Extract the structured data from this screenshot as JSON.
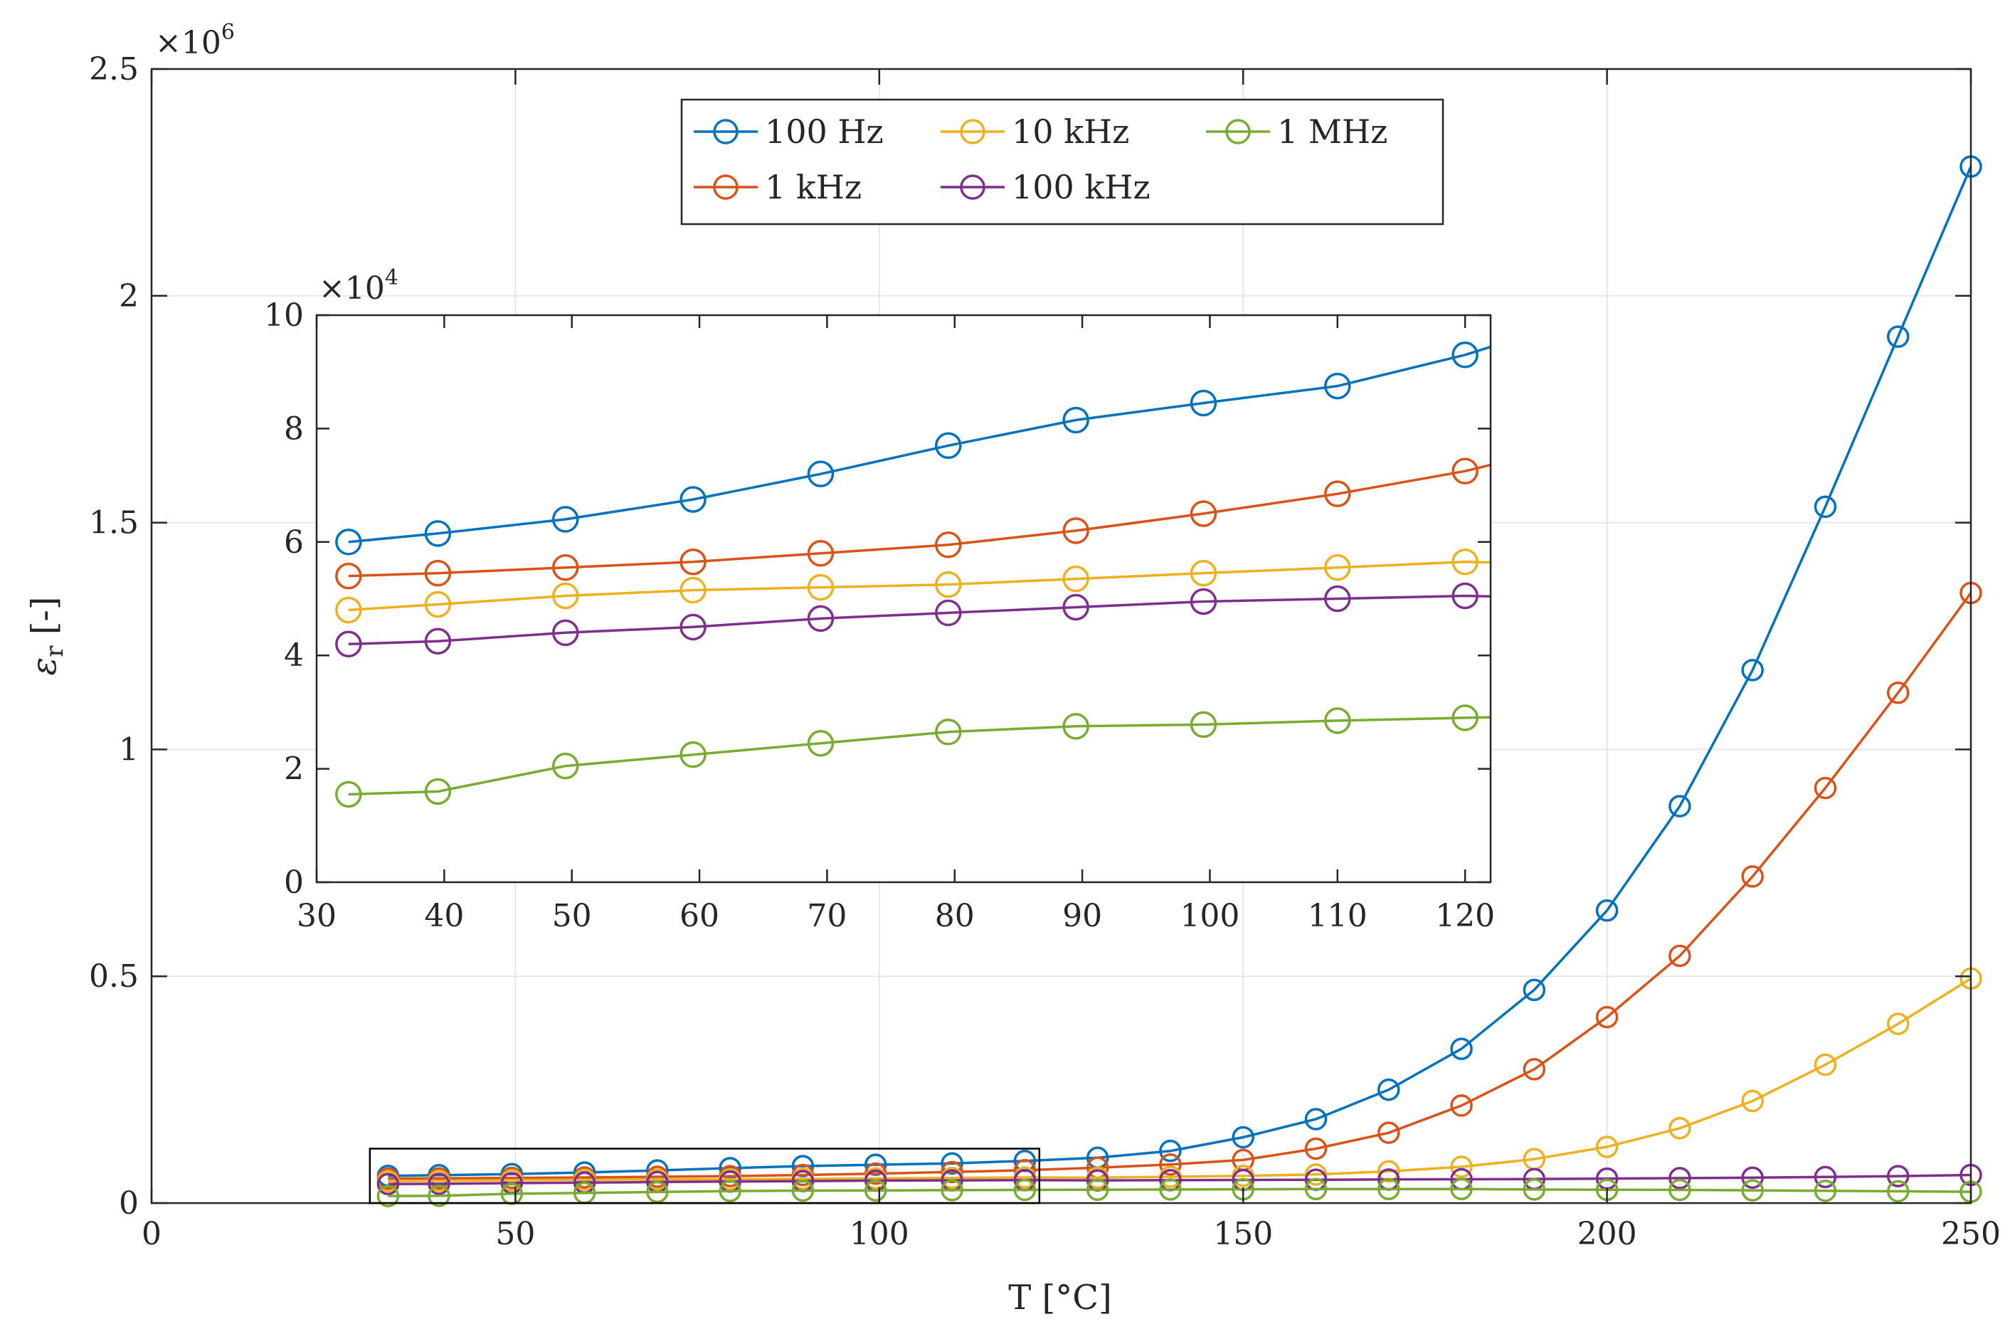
{
  "chart_data": {
    "type": "line",
    "main": {
      "xlabel": "T [°C]",
      "ylabel_symbol": "ε",
      "ylabel_sub": "r",
      "ylabel_unit": " [-]",
      "xlim": [
        0,
        250
      ],
      "ylim": [
        0,
        2500000
      ],
      "x_ticks": [
        0,
        50,
        100,
        150,
        200,
        250
      ],
      "x_tick_labels": [
        "0",
        "50",
        "100",
        "150",
        "200",
        "250"
      ],
      "y_ticks": [
        0,
        500000,
        1000000,
        1500000,
        2000000,
        2500000
      ],
      "y_tick_labels": [
        "0",
        "0.5",
        "1",
        "1.5",
        "2",
        "2.5"
      ],
      "y_exponent_base": "×10",
      "y_exponent_power": "6",
      "grid": true
    },
    "inset": {
      "xlim": [
        30,
        122
      ],
      "ylim": [
        0,
        100000
      ],
      "x_ticks": [
        30,
        40,
        50,
        60,
        70,
        80,
        90,
        100,
        110,
        120
      ],
      "x_tick_labels": [
        "30",
        "40",
        "50",
        "60",
        "70",
        "80",
        "90",
        "100",
        "110",
        "120"
      ],
      "y_ticks": [
        0,
        20000,
        40000,
        60000,
        80000,
        100000
      ],
      "y_tick_labels": [
        "0",
        "2",
        "4",
        "6",
        "8",
        "10"
      ],
      "y_exponent_base": "×10",
      "y_exponent_power": "4",
      "grid": false
    },
    "zoom_box": {
      "x": [
        30,
        122
      ],
      "y": [
        0,
        120000
      ]
    },
    "x": [
      32.5,
      39.5,
      49.5,
      59.5,
      69.5,
      79.5,
      89.5,
      99.5,
      110,
      120,
      130,
      140,
      150,
      160,
      170,
      180,
      190,
      200,
      210,
      220,
      230,
      240,
      250
    ],
    "series": [
      {
        "name": "100 Hz",
        "color": "#0072BD",
        "values": [
          60000,
          61500,
          64000,
          67500,
          72000,
          77000,
          81500,
          84500,
          87500,
          93000,
          100000,
          115000,
          145000,
          185000,
          250000,
          340000,
          470000,
          645000,
          875000,
          1175000,
          1535000,
          1910000,
          2285000
        ]
      },
      {
        "name": "1 kHz",
        "color": "#D95319",
        "values": [
          54000,
          54500,
          55500,
          56500,
          58000,
          59500,
          62000,
          65000,
          68500,
          72500,
          78000,
          85000,
          95000,
          120000,
          155000,
          215000,
          295000,
          410000,
          545000,
          720000,
          915000,
          1125000,
          1345000
        ]
      },
      {
        "name": "10 kHz",
        "color": "#EDB120",
        "values": [
          48000,
          49000,
          50500,
          51500,
          52000,
          52500,
          53500,
          54500,
          55500,
          56500,
          56000,
          58000,
          60000,
          63000,
          70000,
          80000,
          97000,
          124000,
          165000,
          225000,
          305000,
          395000,
          495000
        ]
      },
      {
        "name": "100 kHz",
        "color": "#7E2F8E",
        "values": [
          42000,
          42500,
          44000,
          45000,
          46500,
          47500,
          48500,
          49500,
          50000,
          50500,
          50000,
          50500,
          51000,
          51500,
          52000,
          52500,
          53000,
          54000,
          55000,
          56000,
          57500,
          59500,
          62000
        ]
      },
      {
        "name": "1 MHz",
        "color": "#77AC30",
        "values": [
          15500,
          16000,
          20500,
          22500,
          24500,
          26500,
          27500,
          27800,
          28500,
          29000,
          29500,
          30000,
          30500,
          31000,
          31000,
          31000,
          30000,
          29500,
          29000,
          28000,
          27000,
          26000,
          25000
        ]
      }
    ],
    "legend_order": [
      "100 Hz",
      "10 kHz",
      "1 MHz",
      "1 kHz",
      "100 kHz"
    ]
  }
}
